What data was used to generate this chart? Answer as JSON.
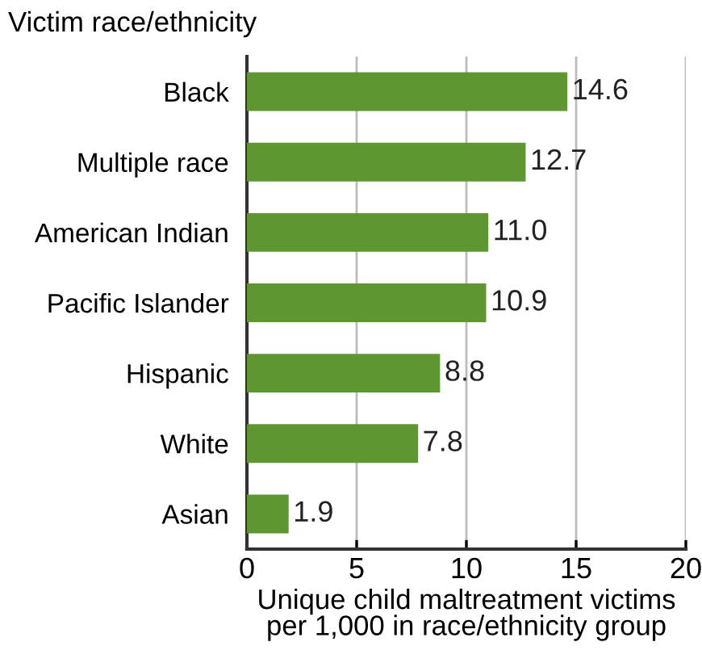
{
  "chart_data": {
    "type": "bar",
    "orientation": "horizontal",
    "ylabel": "Victim race/ethnicity",
    "xlabel": "Unique child maltreatment victims\nper 1,000 in race/ethnicity group",
    "categories": [
      "Black",
      "Multiple race",
      "American Indian",
      "Pacific Islander",
      "Hispanic",
      "White",
      "Asian"
    ],
    "values": [
      14.6,
      12.7,
      11.0,
      10.9,
      8.8,
      7.8,
      1.9
    ],
    "value_labels": [
      "14.6",
      "12.7",
      "11.0",
      "10.9",
      "8.8",
      "7.8",
      "1.9"
    ],
    "color": "#5e9732",
    "xlim": [
      0,
      20
    ],
    "xticks": [
      0,
      5,
      10,
      15,
      20
    ],
    "grid": "x"
  }
}
